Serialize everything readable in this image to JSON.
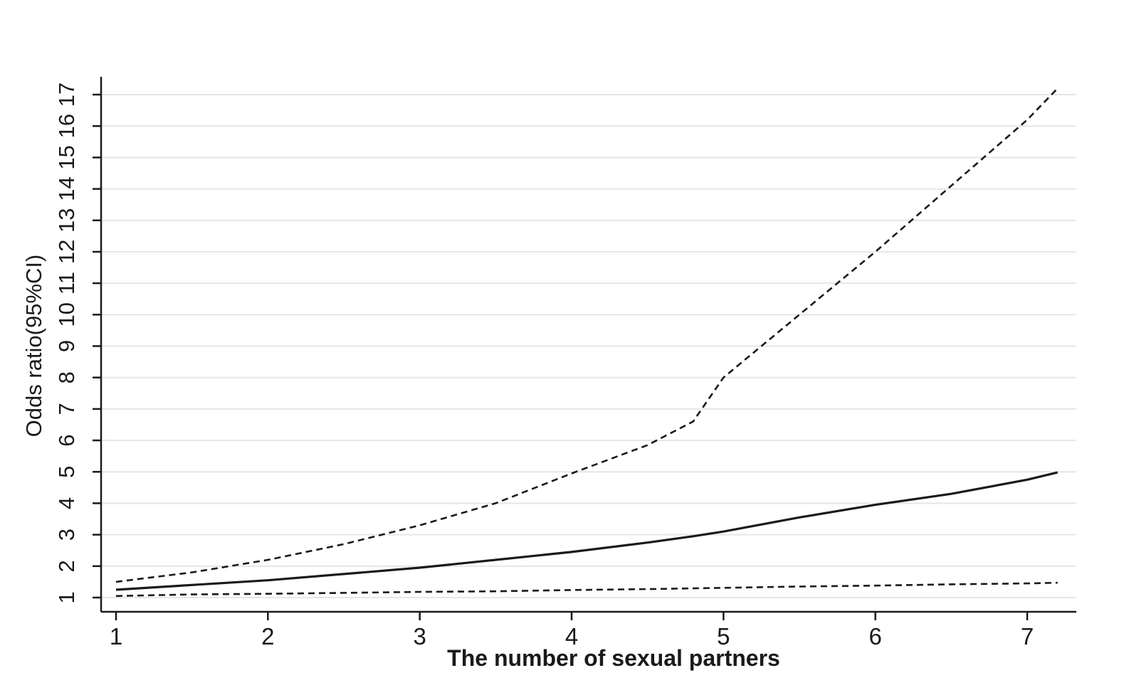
{
  "chart_data": {
    "type": "line",
    "title": "",
    "xlabel": "The number of sexual partners",
    "ylabel": "Odds ratio(95%CI)",
    "xlim": [
      0.9,
      7.3
    ],
    "ylim": [
      0.6,
      17.6
    ],
    "x_ticks": [
      1,
      2,
      3,
      4,
      5,
      6,
      7
    ],
    "y_ticks": [
      1,
      2,
      3,
      4,
      5,
      6,
      7,
      8,
      9,
      10,
      11,
      12,
      13,
      14,
      15,
      16,
      17
    ],
    "grid": true,
    "legend": "none",
    "series": [
      {
        "style": "solid",
        "color": "#1a1a1a",
        "x": [
          1,
          1.5,
          2,
          2.5,
          3,
          3.5,
          4,
          4.5,
          4.8,
          5,
          5.5,
          6,
          6.5,
          7,
          7.2
        ],
        "y": [
          1.25,
          1.4,
          1.55,
          1.75,
          1.95,
          2.2,
          2.45,
          2.75,
          2.95,
          3.1,
          3.55,
          3.95,
          4.3,
          4.75,
          4.98
        ]
      },
      {
        "style": "dashed",
        "color": "#1a1a1a",
        "x": [
          1,
          1.5,
          2,
          2.5,
          3,
          3.5,
          4,
          4.5,
          4.8,
          5,
          5.5,
          6,
          6.5,
          7,
          7.2
        ],
        "y": [
          1.5,
          1.8,
          2.2,
          2.7,
          3.3,
          4.0,
          4.95,
          5.85,
          6.6,
          8.0,
          10.0,
          12.0,
          14.1,
          16.2,
          17.2
        ]
      },
      {
        "style": "dashed",
        "color": "#1a1a1a",
        "x": [
          1,
          1.5,
          2,
          2.5,
          3,
          3.5,
          4,
          4.5,
          5,
          5.5,
          6,
          6.5,
          7,
          7.2
        ],
        "y": [
          1.05,
          1.1,
          1.12,
          1.15,
          1.18,
          1.2,
          1.24,
          1.27,
          1.31,
          1.35,
          1.38,
          1.42,
          1.45,
          1.47
        ]
      }
    ]
  }
}
